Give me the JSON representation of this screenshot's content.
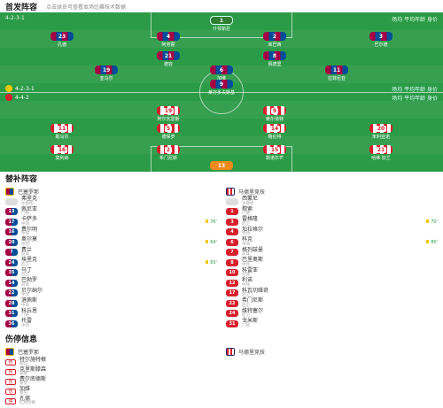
{
  "lineup": {
    "title": "首发阵容",
    "subtitle": "点击球员可查看本场比赛技术数据",
    "home_formation_label": "4-2-3-1",
    "away_formation_label": "4-4-2",
    "home_team": "巴塞罗那",
    "away_team": "马德里竞技",
    "home_stats": "场均 平均年龄 身价",
    "away_stats": "场均 平均年龄 身价",
    "home_players": [
      {
        "num": "1",
        "name": "什琴斯尼",
        "kit": "gk1"
      },
      {
        "num": "23",
        "name": "孔德",
        "kit": "barca"
      },
      {
        "num": "4",
        "name": "阿劳霍",
        "kit": "barca"
      },
      {
        "num": "2",
        "name": "库巴西",
        "kit": "barca"
      },
      {
        "num": "3",
        "name": "巴尔德",
        "kit": "barca"
      },
      {
        "num": "21",
        "name": "德容",
        "kit": "barca"
      },
      {
        "num": "8",
        "name": "佩德里",
        "kit": "barca"
      },
      {
        "num": "19",
        "name": "亚马尔",
        "kit": "barca"
      },
      {
        "num": "6",
        "name": "加维",
        "kit": "barca"
      },
      {
        "num": "11",
        "name": "拉菲尼亚",
        "kit": "barca"
      },
      {
        "num": "9",
        "name": "莱万多夫斯基",
        "kit": "barca"
      }
    ],
    "away_players": [
      {
        "num": "13",
        "name": "奥布拉克",
        "kit": "gk2"
      },
      {
        "num": "16",
        "name": "莫利纳",
        "kit": "atl"
      },
      {
        "num": "2",
        "name": "希门尼斯",
        "kit": "atl"
      },
      {
        "num": "15",
        "name": "勒诺尔芒",
        "kit": "atl"
      },
      {
        "num": "21",
        "name": "哈维·加兰",
        "kit": "atl"
      },
      {
        "num": "11",
        "name": "勒马尔",
        "kit": "atl"
      },
      {
        "num": "5",
        "name": "德保罗",
        "kit": "atl"
      },
      {
        "num": "14",
        "name": "略伦特",
        "kit": "atl"
      },
      {
        "num": "20",
        "name": "朱利亚诺",
        "kit": "atl"
      },
      {
        "num": "19",
        "name": "阿尔瓦雷斯",
        "kit": "atl"
      },
      {
        "num": "9",
        "name": "索尔洛特",
        "kit": "atl"
      }
    ],
    "home_form_label": "近期",
    "away_form_label": "近期"
  },
  "subs": {
    "title": "替补阵容",
    "home": {
      "team": "巴塞罗那",
      "coach": {
        "name": "弗里克",
        "role": "主教练"
      },
      "players": [
        {
          "num": "13",
          "name": "佩尼亚",
          "meta": "门将",
          "event": ""
        },
        {
          "num": "17",
          "name": "卡萨多",
          "meta": "中场",
          "event": "76'"
        },
        {
          "num": "16",
          "name": "费尔明",
          "meta": "中场",
          "event": ""
        },
        {
          "num": "20",
          "name": "奥尔莫",
          "meta": "中场",
          "event": "64'"
        },
        {
          "num": "7",
          "name": "费兰",
          "meta": "前锋",
          "event": ""
        },
        {
          "num": "24",
          "name": "埃里克",
          "meta": "后卫",
          "event": "83'"
        },
        {
          "num": "35",
          "name": "马丁",
          "meta": "后卫",
          "event": ""
        },
        {
          "num": "14",
          "name": "巴勃罗",
          "meta": "前锋",
          "event": ""
        },
        {
          "num": "22",
          "name": "贝尔纳尔",
          "meta": "中场",
          "event": ""
        },
        {
          "num": "28",
          "name": "洛佩斯",
          "meta": "中场",
          "event": ""
        },
        {
          "num": "31",
          "name": "科丘恩",
          "meta": "门将",
          "event": ""
        },
        {
          "num": "36",
          "name": "托雷",
          "meta": "中场",
          "event": ""
        }
      ]
    },
    "away": {
      "team": "马德里竞技",
      "coach": {
        "name": "西蒙尼",
        "role": "主教练"
      },
      "players": [
        {
          "num": "1",
          "name": "穆索",
          "meta": "门将",
          "event": ""
        },
        {
          "num": "3",
          "name": "雷格隆",
          "meta": "后卫",
          "event": "70'"
        },
        {
          "num": "4",
          "name": "加拉格尔",
          "meta": "中场",
          "event": ""
        },
        {
          "num": "6",
          "name": "科克",
          "meta": "中场",
          "event": "80'"
        },
        {
          "num": "7",
          "name": "格列兹曼",
          "meta": "前锋",
          "event": ""
        },
        {
          "num": "8",
          "name": "巴里奥斯",
          "meta": "中场",
          "event": ""
        },
        {
          "num": "10",
          "name": "科雷亚",
          "meta": "前锋",
          "event": ""
        },
        {
          "num": "12",
          "name": "利诺",
          "meta": "中场",
          "event": ""
        },
        {
          "num": "17",
          "name": "科瓦切维奇",
          "meta": "后卫",
          "event": ""
        },
        {
          "num": "22",
          "name": "希门尼斯",
          "meta": "后卫",
          "event": ""
        },
        {
          "num": "24",
          "name": "维特塞尔",
          "meta": "后卫",
          "event": ""
        },
        {
          "num": "31",
          "name": "戈米斯",
          "meta": "门将",
          "event": ""
        }
      ]
    }
  },
  "injuries": {
    "title": "伤停信息",
    "home": {
      "team": "巴塞罗那",
      "players": [
        {
          "tag": "伤",
          "name": "特尔施特根",
          "meta": "膝伤"
        },
        {
          "tag": "伤",
          "name": "克里斯滕森",
          "meta": "跟腱"
        },
        {
          "tag": "伤",
          "name": "费尔南德斯",
          "meta": "膝伤"
        },
        {
          "tag": "伤",
          "name": "加维",
          "meta": "膝伤"
        },
        {
          "tag": "停",
          "name": "孔德",
          "meta": "红牌停赛"
        }
      ]
    },
    "away": {
      "team": "马德里竞技",
      "players": []
    }
  }
}
